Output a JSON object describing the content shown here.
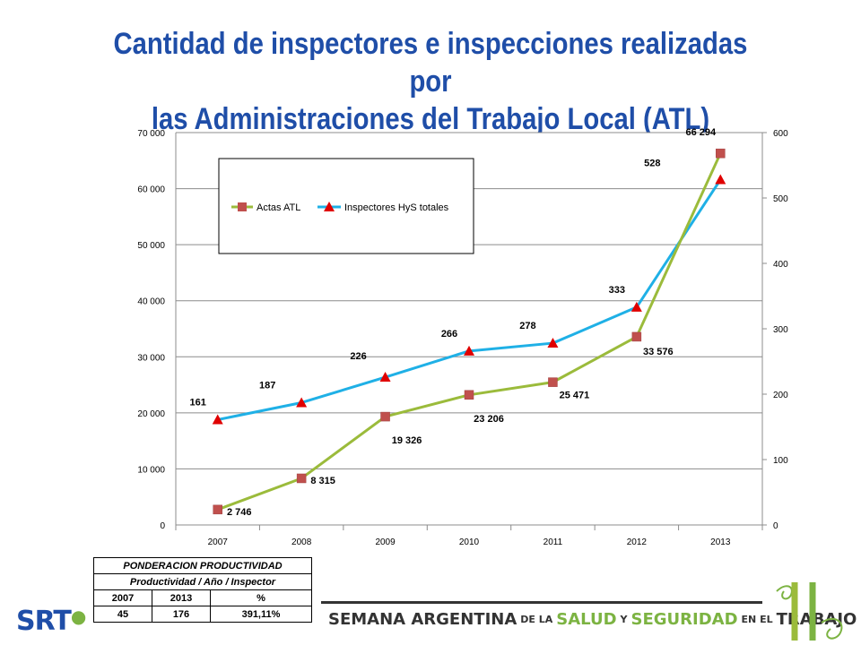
{
  "slide": {
    "title_line1": "Cantidad de inspectores e inspecciones realizadas por",
    "title_line2": "las Administraciones del Trabajo Local (ATL)"
  },
  "chart_data": {
    "type": "line",
    "categories": [
      "2007",
      "2008",
      "2009",
      "2010",
      "2011",
      "2012",
      "2013"
    ],
    "series": [
      {
        "name": "Actas ATL",
        "axis": "left",
        "values": [
          2746,
          8315,
          19326,
          23206,
          25471,
          33576,
          66294
        ],
        "labels": [
          "2 746",
          "8 315",
          "19 326",
          "23 206",
          "25 471",
          "33 576",
          "66 294"
        ],
        "color": "#9bbb3b",
        "marker_color": "#c0504d",
        "marker": "square"
      },
      {
        "name": "Inspectores HyS totales",
        "axis": "right",
        "values": [
          161,
          187,
          226,
          266,
          278,
          333,
          528
        ],
        "labels": [
          "161",
          "187",
          "226",
          "266",
          "278",
          "333",
          "528"
        ],
        "color": "#1fb0e6",
        "marker_color": "#e00000",
        "marker": "triangle"
      }
    ],
    "left_axis": {
      "min": 0,
      "max": 70000,
      "step": 10000,
      "tick_labels": [
        "0",
        "10 000",
        "20 000",
        "30 000",
        "40 000",
        "50 000",
        "60 000",
        "70 000"
      ]
    },
    "right_axis": {
      "min": 0,
      "max": 600,
      "step": 100,
      "tick_labels": [
        "0",
        "100",
        "200",
        "300",
        "400",
        "500",
        "600"
      ]
    },
    "grid": true,
    "legend_placement": "top-left inside plot"
  },
  "productivity_table": {
    "title": "PONDERACION PRODUCTIVIDAD",
    "subtitle": "Productividad / Año / Inspector",
    "headers": [
      "2007",
      "2013",
      "%"
    ],
    "values": [
      "45",
      "176",
      "391,11%"
    ]
  },
  "footer": {
    "logo_text": "SRT",
    "banner_part1": "SEMANA ARGENTINA",
    "banner_part2": "DE LA",
    "banner_part3": "SALUD",
    "banner_part4": "Y",
    "banner_part5": "SEGURIDAD",
    "banner_part6": "EN EL",
    "banner_part7": "TRABAJO"
  }
}
